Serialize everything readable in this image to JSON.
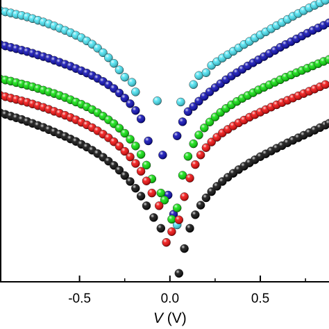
{
  "chart_data": {
    "type": "scatter",
    "title": "",
    "xlabel": "V (V)",
    "xlabel_var": "V",
    "xlabel_unit": " (V)",
    "ylabel": "",
    "xlim": [
      -0.94,
      0.88
    ],
    "ylim": [
      0,
      1
    ],
    "xticks": [
      -0.5,
      0.0,
      0.5
    ],
    "xtick_labels": [
      "-0.5",
      "0.0",
      "0.5"
    ],
    "grid": false,
    "legend": "none",
    "series": [
      {
        "color": "#40e0f0",
        "points": [
          [
            -0.94,
            0.962
          ],
          [
            -0.91,
            0.958
          ],
          [
            -0.88,
            0.954
          ],
          [
            -0.85,
            0.949
          ],
          [
            -0.82,
            0.945
          ],
          [
            -0.79,
            0.94
          ],
          [
            -0.76,
            0.934
          ],
          [
            -0.73,
            0.928
          ],
          [
            -0.7,
            0.922
          ],
          [
            -0.67,
            0.915
          ],
          [
            -0.64,
            0.908
          ],
          [
            -0.61,
            0.9
          ],
          [
            -0.58,
            0.892
          ],
          [
            -0.55,
            0.884
          ],
          [
            -0.52,
            0.875
          ],
          [
            -0.49,
            0.866
          ],
          [
            -0.46,
            0.855
          ],
          [
            -0.43,
            0.843
          ],
          [
            -0.4,
            0.829
          ],
          [
            -0.37,
            0.813
          ],
          [
            -0.34,
            0.795
          ],
          [
            -0.31,
            0.775
          ],
          [
            -0.28,
            0.752
          ],
          [
            -0.25,
            0.726
          ],
          [
            -0.21,
            0.708
          ],
          [
            -0.19,
            0.674
          ],
          [
            -0.07,
            0.642
          ],
          [
            0.04,
            0.202
          ],
          [
            0.06,
            0.638
          ],
          [
            0.13,
            0.7
          ],
          [
            0.16,
            0.732
          ],
          [
            0.2,
            0.742
          ],
          [
            0.23,
            0.768
          ],
          [
            0.26,
            0.781
          ],
          [
            0.29,
            0.794
          ],
          [
            0.32,
            0.806
          ],
          [
            0.35,
            0.818
          ],
          [
            0.38,
            0.83
          ],
          [
            0.41,
            0.842
          ],
          [
            0.44,
            0.853
          ],
          [
            0.47,
            0.865
          ],
          [
            0.5,
            0.876
          ],
          [
            0.53,
            0.887
          ],
          [
            0.56,
            0.898
          ],
          [
            0.59,
            0.909
          ],
          [
            0.62,
            0.92
          ],
          [
            0.65,
            0.931
          ],
          [
            0.68,
            0.942
          ],
          [
            0.71,
            0.952
          ],
          [
            0.74,
            0.962
          ],
          [
            0.77,
            0.972
          ],
          [
            0.8,
            0.981
          ],
          [
            0.83,
            0.99
          ],
          [
            0.86,
            0.999
          ]
        ]
      },
      {
        "color": "#0000b0",
        "points": [
          [
            -0.94,
            0.842
          ],
          [
            -0.91,
            0.837
          ],
          [
            -0.88,
            0.832
          ],
          [
            -0.85,
            0.827
          ],
          [
            -0.82,
            0.822
          ],
          [
            -0.79,
            0.817
          ],
          [
            -0.76,
            0.811
          ],
          [
            -0.73,
            0.805
          ],
          [
            -0.7,
            0.799
          ],
          [
            -0.67,
            0.793
          ],
          [
            -0.64,
            0.786
          ],
          [
            -0.61,
            0.779
          ],
          [
            -0.58,
            0.772
          ],
          [
            -0.55,
            0.765
          ],
          [
            -0.52,
            0.757
          ],
          [
            -0.49,
            0.749
          ],
          [
            -0.46,
            0.741
          ],
          [
            -0.43,
            0.732
          ],
          [
            -0.4,
            0.722
          ],
          [
            -0.37,
            0.711
          ],
          [
            -0.34,
            0.699
          ],
          [
            -0.31,
            0.686
          ],
          [
            -0.28,
            0.67
          ],
          [
            -0.25,
            0.652
          ],
          [
            -0.22,
            0.632
          ],
          [
            -0.19,
            0.608
          ],
          [
            -0.16,
            0.578
          ],
          [
            -0.12,
            0.5
          ],
          [
            -0.04,
            0.45
          ],
          [
            -0.01,
            0.308
          ],
          [
            0.02,
            0.24
          ],
          [
            0.04,
            0.518
          ],
          [
            0.07,
            0.568
          ],
          [
            0.1,
            0.604
          ],
          [
            0.13,
            0.622
          ],
          [
            0.16,
            0.641
          ],
          [
            0.19,
            0.658
          ],
          [
            0.22,
            0.674
          ],
          [
            0.25,
            0.689
          ],
          [
            0.28,
            0.703
          ],
          [
            0.31,
            0.717
          ],
          [
            0.34,
            0.73
          ],
          [
            0.37,
            0.742
          ],
          [
            0.4,
            0.754
          ],
          [
            0.43,
            0.766
          ],
          [
            0.46,
            0.777
          ],
          [
            0.49,
            0.788
          ],
          [
            0.52,
            0.799
          ],
          [
            0.55,
            0.81
          ],
          [
            0.58,
            0.821
          ],
          [
            0.61,
            0.832
          ],
          [
            0.64,
            0.842
          ],
          [
            0.67,
            0.852
          ],
          [
            0.7,
            0.862
          ],
          [
            0.73,
            0.872
          ],
          [
            0.76,
            0.882
          ],
          [
            0.79,
            0.892
          ],
          [
            0.82,
            0.901
          ],
          [
            0.85,
            0.91
          ],
          [
            0.88,
            0.919
          ]
        ]
      },
      {
        "color": "#00dd00",
        "points": [
          [
            -0.94,
            0.72
          ],
          [
            -0.91,
            0.716
          ],
          [
            -0.88,
            0.712
          ],
          [
            -0.85,
            0.707
          ],
          [
            -0.82,
            0.702
          ],
          [
            -0.79,
            0.697
          ],
          [
            -0.76,
            0.692
          ],
          [
            -0.73,
            0.686
          ],
          [
            -0.7,
            0.68
          ],
          [
            -0.67,
            0.674
          ],
          [
            -0.64,
            0.668
          ],
          [
            -0.61,
            0.661
          ],
          [
            -0.58,
            0.654
          ],
          [
            -0.55,
            0.646
          ],
          [
            -0.52,
            0.638
          ],
          [
            -0.49,
            0.63
          ],
          [
            -0.46,
            0.621
          ],
          [
            -0.43,
            0.611
          ],
          [
            -0.4,
            0.6
          ],
          [
            -0.37,
            0.588
          ],
          [
            -0.34,
            0.575
          ],
          [
            -0.31,
            0.561
          ],
          [
            -0.28,
            0.545
          ],
          [
            -0.25,
            0.527
          ],
          [
            -0.22,
            0.506
          ],
          [
            -0.19,
            0.482
          ],
          [
            -0.16,
            0.452
          ],
          [
            -0.13,
            0.414
          ],
          [
            -0.1,
            0.365
          ],
          [
            -0.05,
            0.315
          ],
          [
            -0.03,
            0.29
          ],
          [
            0.01,
            0.222
          ],
          [
            0.04,
            0.262
          ],
          [
            0.07,
            0.378
          ],
          [
            0.1,
            0.445
          ],
          [
            0.13,
            0.49
          ],
          [
            0.16,
            0.521
          ],
          [
            0.19,
            0.546
          ],
          [
            0.22,
            0.567
          ],
          [
            0.25,
            0.585
          ],
          [
            0.28,
            0.601
          ],
          [
            0.31,
            0.615
          ],
          [
            0.34,
            0.628
          ],
          [
            0.37,
            0.64
          ],
          [
            0.4,
            0.651
          ],
          [
            0.43,
            0.661
          ],
          [
            0.46,
            0.671
          ],
          [
            0.49,
            0.681
          ],
          [
            0.52,
            0.69
          ],
          [
            0.55,
            0.699
          ],
          [
            0.58,
            0.708
          ],
          [
            0.61,
            0.717
          ],
          [
            0.64,
            0.726
          ],
          [
            0.67,
            0.734
          ],
          [
            0.7,
            0.742
          ],
          [
            0.73,
            0.75
          ],
          [
            0.76,
            0.758
          ],
          [
            0.79,
            0.766
          ],
          [
            0.82,
            0.774
          ],
          [
            0.85,
            0.782
          ],
          [
            0.88,
            0.789
          ]
        ]
      },
      {
        "color": "#ee0000",
        "points": [
          [
            -0.94,
            0.662
          ],
          [
            -0.91,
            0.657
          ],
          [
            -0.88,
            0.652
          ],
          [
            -0.85,
            0.647
          ],
          [
            -0.82,
            0.642
          ],
          [
            -0.79,
            0.637
          ],
          [
            -0.76,
            0.631
          ],
          [
            -0.73,
            0.625
          ],
          [
            -0.7,
            0.619
          ],
          [
            -0.67,
            0.612
          ],
          [
            -0.64,
            0.605
          ],
          [
            -0.61,
            0.598
          ],
          [
            -0.58,
            0.591
          ],
          [
            -0.55,
            0.583
          ],
          [
            -0.52,
            0.575
          ],
          [
            -0.49,
            0.566
          ],
          [
            -0.46,
            0.557
          ],
          [
            -0.43,
            0.547
          ],
          [
            -0.4,
            0.536
          ],
          [
            -0.37,
            0.524
          ],
          [
            -0.34,
            0.511
          ],
          [
            -0.31,
            0.497
          ],
          [
            -0.28,
            0.481
          ],
          [
            -0.25,
            0.463
          ],
          [
            -0.22,
            0.443
          ],
          [
            -0.19,
            0.42
          ],
          [
            -0.16,
            0.392
          ],
          [
            -0.13,
            0.358
          ],
          [
            -0.1,
            0.315
          ],
          [
            -0.06,
            0.27
          ],
          [
            -0.02,
            0.14
          ],
          [
            0.01,
            0.178
          ],
          [
            0.05,
            0.22
          ],
          [
            0.08,
            0.302
          ],
          [
            0.11,
            0.368
          ],
          [
            0.14,
            0.416
          ],
          [
            0.17,
            0.45
          ],
          [
            0.2,
            0.476
          ],
          [
            0.23,
            0.496
          ],
          [
            0.26,
            0.513
          ],
          [
            0.29,
            0.528
          ],
          [
            0.32,
            0.541
          ],
          [
            0.35,
            0.553
          ],
          [
            0.38,
            0.564
          ],
          [
            0.41,
            0.574
          ],
          [
            0.44,
            0.584
          ],
          [
            0.47,
            0.593
          ],
          [
            0.5,
            0.602
          ],
          [
            0.53,
            0.611
          ],
          [
            0.56,
            0.62
          ],
          [
            0.59,
            0.628
          ],
          [
            0.62,
            0.636
          ],
          [
            0.65,
            0.644
          ],
          [
            0.68,
            0.652
          ],
          [
            0.71,
            0.66
          ],
          [
            0.74,
            0.668
          ],
          [
            0.77,
            0.676
          ],
          [
            0.8,
            0.684
          ],
          [
            0.83,
            0.692
          ],
          [
            0.86,
            0.7
          ]
        ]
      },
      {
        "color": "#000000",
        "points": [
          [
            -0.94,
            0.6
          ],
          [
            -0.91,
            0.594
          ],
          [
            -0.88,
            0.588
          ],
          [
            -0.85,
            0.582
          ],
          [
            -0.82,
            0.576
          ],
          [
            -0.79,
            0.569
          ],
          [
            -0.76,
            0.562
          ],
          [
            -0.73,
            0.555
          ],
          [
            -0.7,
            0.548
          ],
          [
            -0.67,
            0.54
          ],
          [
            -0.64,
            0.532
          ],
          [
            -0.61,
            0.524
          ],
          [
            -0.58,
            0.516
          ],
          [
            -0.55,
            0.507
          ],
          [
            -0.52,
            0.498
          ],
          [
            -0.49,
            0.488
          ],
          [
            -0.46,
            0.478
          ],
          [
            -0.43,
            0.467
          ],
          [
            -0.4,
            0.455
          ],
          [
            -0.37,
            0.442
          ],
          [
            -0.34,
            0.428
          ],
          [
            -0.31,
            0.413
          ],
          [
            -0.28,
            0.396
          ],
          [
            -0.25,
            0.377
          ],
          [
            -0.22,
            0.356
          ],
          [
            -0.19,
            0.332
          ],
          [
            -0.16,
            0.304
          ],
          [
            -0.13,
            0.27
          ],
          [
            -0.09,
            0.228
          ],
          [
            -0.05,
            0.19
          ],
          [
            0.05,
            0.03
          ],
          [
            0.08,
            0.118
          ],
          [
            0.11,
            0.19
          ],
          [
            0.14,
            0.238
          ],
          [
            0.17,
            0.272
          ],
          [
            0.2,
            0.298
          ],
          [
            0.23,
            0.32
          ],
          [
            0.26,
            0.339
          ],
          [
            0.29,
            0.356
          ],
          [
            0.32,
            0.371
          ],
          [
            0.35,
            0.385
          ],
          [
            0.38,
            0.398
          ],
          [
            0.41,
            0.41
          ],
          [
            0.44,
            0.422
          ],
          [
            0.47,
            0.433
          ],
          [
            0.5,
            0.444
          ],
          [
            0.53,
            0.454
          ],
          [
            0.56,
            0.464
          ],
          [
            0.59,
            0.474
          ],
          [
            0.62,
            0.483
          ],
          [
            0.65,
            0.493
          ],
          [
            0.68,
            0.502
          ],
          [
            0.71,
            0.511
          ],
          [
            0.74,
            0.52
          ],
          [
            0.77,
            0.529
          ],
          [
            0.8,
            0.538
          ],
          [
            0.83,
            0.547
          ],
          [
            0.86,
            0.556
          ],
          [
            0.88,
            0.562
          ]
        ]
      }
    ]
  }
}
